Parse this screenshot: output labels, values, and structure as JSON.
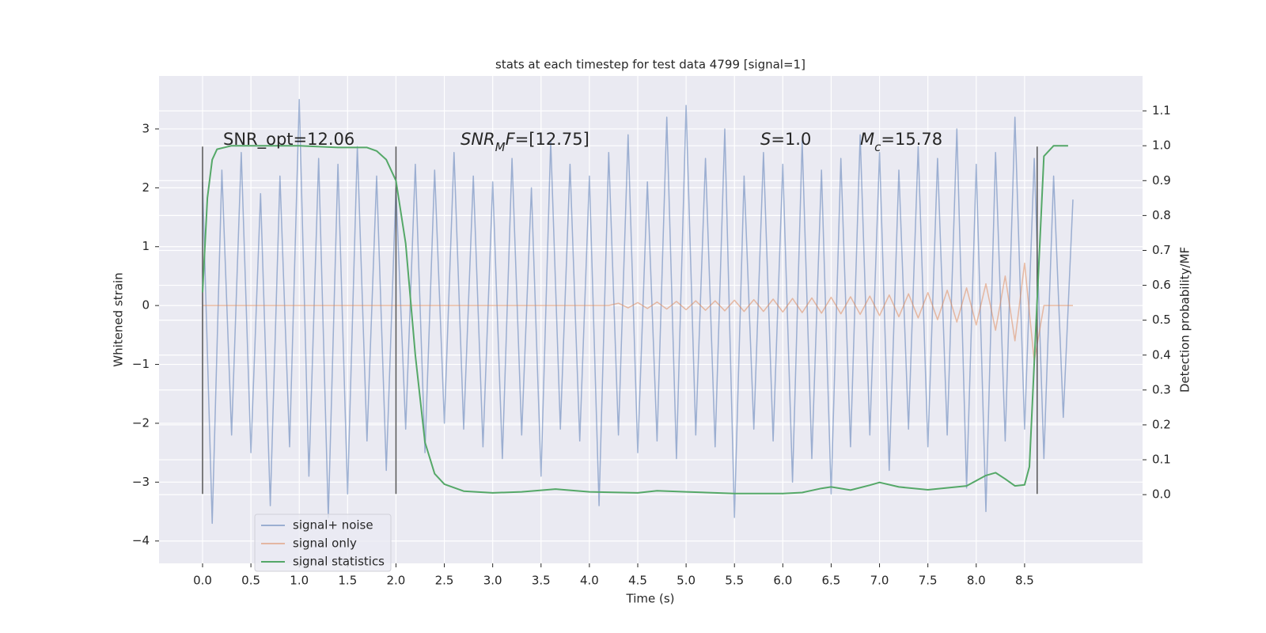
{
  "chart_data": {
    "type": "line",
    "title": "stats at each timestep for test data 4799 [signal=1]",
    "xlabel": "Time (s)",
    "ylabel": "Whitened strain",
    "y2label": "Detection probability/MF",
    "xlim": [
      -0.45,
      9.72
    ],
    "ylim": [
      -4.38,
      3.9
    ],
    "y2lim": [
      -0.197,
      1.2
    ],
    "xticks": [
      {
        "value": 0,
        "label": "0.0"
      },
      0.5,
      {
        "value": 1,
        "label": "1.0"
      },
      1.5,
      {
        "value": 2,
        "label": "2.0"
      },
      2.5,
      {
        "value": 3,
        "label": "3.0"
      },
      3.5,
      {
        "value": 4,
        "label": "4.0"
      },
      4.5,
      {
        "value": 5,
        "label": "5.0"
      },
      5.5,
      {
        "value": 6,
        "label": "6.0"
      },
      6.5,
      {
        "value": 7,
        "label": "7.0"
      },
      7.5,
      {
        "value": 8,
        "label": "8.0"
      },
      8.5
    ],
    "yticks": [
      {
        "value": -4,
        "label": "−4"
      },
      {
        "value": -3,
        "label": "−3"
      },
      {
        "value": -2,
        "label": "−2"
      },
      {
        "value": -1,
        "label": "−1"
      },
      0,
      1,
      2,
      3
    ],
    "y2ticks": [
      {
        "value": 0,
        "label": "0.0"
      },
      0.1,
      0.2,
      0.3,
      0.4,
      0.5,
      0.6,
      0.7,
      0.8,
      0.9,
      {
        "value": 1,
        "label": "1.0"
      },
      1.1
    ],
    "grid": true,
    "legend": "lower left",
    "x": [
      0,
      0.1,
      0.2,
      0.3,
      0.4,
      0.5,
      0.6,
      0.7,
      0.8,
      0.9,
      1.0,
      1.1,
      1.2,
      1.3,
      1.4,
      1.5,
      1.6,
      1.7,
      1.8,
      1.9,
      2.0,
      2.1,
      2.2,
      2.3,
      2.4,
      2.5,
      2.6,
      2.7,
      2.8,
      2.9,
      3.0,
      3.1,
      3.2,
      3.3,
      3.4,
      3.5,
      3.6,
      3.7,
      3.8,
      3.9,
      4.0,
      4.1,
      4.2,
      4.3,
      4.4,
      4.5,
      4.6,
      4.7,
      4.8,
      4.9,
      5.0,
      5.1,
      5.2,
      5.3,
      5.4,
      5.5,
      5.6,
      5.7,
      5.8,
      5.9,
      6.0,
      6.1,
      6.2,
      6.3,
      6.4,
      6.5,
      6.6,
      6.7,
      6.8,
      6.9,
      7.0,
      7.1,
      7.2,
      7.3,
      7.4,
      7.5,
      7.6,
      7.7,
      7.8,
      7.9,
      8.0,
      8.1,
      8.2,
      8.3,
      8.4,
      8.5,
      8.6,
      8.7,
      8.8,
      8.9,
      9.0
    ],
    "series": [
      {
        "name": "signal+ noise",
        "color": "#4c72b0",
        "alpha": 0.5,
        "values": [
          2.1,
          -3.7,
          2.3,
          -2.2,
          2.6,
          -2.5,
          1.9,
          -3.4,
          2.2,
          -2.4,
          3.5,
          -2.9,
          2.5,
          -3.6,
          2.4,
          -3.2,
          2.7,
          -2.3,
          2.2,
          -2.8,
          2.0,
          -2.1,
          2.4,
          -2.5,
          2.3,
          -2.0,
          2.6,
          -2.1,
          2.2,
          -2.4,
          2.1,
          -2.6,
          2.5,
          -2.2,
          2.0,
          -2.9,
          2.8,
          -2.1,
          2.4,
          -2.3,
          2.2,
          -3.4,
          2.6,
          -2.2,
          2.9,
          -2.5,
          2.1,
          -2.3,
          3.2,
          -2.6,
          3.4,
          -2.2,
          2.5,
          -2.4,
          3.0,
          -3.6,
          2.2,
          -2.1,
          2.6,
          -2.3,
          2.4,
          -3.0,
          2.8,
          -2.6,
          2.3,
          -3.2,
          2.5,
          -2.4,
          2.9,
          -2.2,
          2.6,
          -2.8,
          2.3,
          -2.1,
          2.7,
          -2.4,
          2.5,
          -2.2,
          3.0,
          -3.1,
          2.4,
          -3.5,
          2.6,
          -2.3,
          3.2,
          -2.1,
          2.5,
          -2.6,
          2.2,
          -1.9,
          1.8
        ]
      },
      {
        "name": "signal only",
        "color": "#dd8452",
        "alpha": 0.5,
        "values": [
          0,
          0,
          0,
          0,
          0,
          0,
          0,
          0,
          0,
          0,
          0,
          0,
          0,
          0,
          0,
          0,
          0,
          0,
          0,
          0,
          0,
          0,
          0,
          0,
          0,
          0,
          0,
          0,
          0,
          0,
          0,
          0,
          0,
          0,
          0,
          0,
          0,
          0,
          0,
          0,
          0,
          0,
          0,
          0.04,
          -0.04,
          0.05,
          -0.05,
          0.06,
          -0.06,
          0.07,
          -0.07,
          0.08,
          -0.08,
          0.08,
          -0.09,
          0.09,
          -0.1,
          0.1,
          -0.1,
          0.11,
          -0.11,
          0.12,
          -0.12,
          0.13,
          -0.13,
          0.14,
          -0.14,
          0.15,
          -0.15,
          0.16,
          -0.17,
          0.18,
          -0.19,
          0.2,
          -0.21,
          0.22,
          -0.24,
          0.26,
          -0.28,
          0.3,
          -0.33,
          0.37,
          -0.42,
          0.5,
          -0.6,
          0.72,
          -0.95,
          0,
          0,
          0,
          0
        ]
      },
      {
        "name": "signal statistics",
        "color": "#55a868",
        "alpha": 1,
        "axis": "y2",
        "x": [
          0,
          0.05,
          0.1,
          0.15,
          0.3,
          0.6,
          1.0,
          1.4,
          1.7,
          1.8,
          1.9,
          2.0,
          2.1,
          2.2,
          2.3,
          2.4,
          2.5,
          2.7,
          3.0,
          3.3,
          3.65,
          4.0,
          4.5,
          4.7,
          5.0,
          5.5,
          6.0,
          6.2,
          6.4,
          6.5,
          6.7,
          6.9,
          7.0,
          7.2,
          7.5,
          7.9,
          8.1,
          8.2,
          8.3,
          8.4,
          8.5,
          8.55,
          8.62,
          8.7,
          8.8,
          8.95
        ],
        "values": [
          0.58,
          0.85,
          0.96,
          0.99,
          1.0,
          1.0,
          1.0,
          0.995,
          0.995,
          0.985,
          0.96,
          0.9,
          0.72,
          0.4,
          0.15,
          0.06,
          0.03,
          0.01,
          0.005,
          0.008,
          0.016,
          0.008,
          0.005,
          0.011,
          0.008,
          0.003,
          0.003,
          0.006,
          0.018,
          0.022,
          0.013,
          0.027,
          0.035,
          0.022,
          0.014,
          0.025,
          0.055,
          0.063,
          0.045,
          0.025,
          0.028,
          0.08,
          0.5,
          0.97,
          1.0,
          1.0
        ]
      }
    ],
    "vlines": {
      "x": [
        0,
        2.0,
        8.63
      ],
      "ymin": -3.2,
      "ymax": 2.7,
      "color": "#555555"
    },
    "annotations": [
      {
        "parts": [
          {
            "text": "SNR_opt=12.06"
          }
        ]
      },
      {
        "parts": [
          {
            "text": "SNR",
            "italic": true
          },
          {
            "text": "M",
            "italic": true,
            "sub": true
          },
          {
            "text": "F",
            "italic": true
          },
          {
            "text": "=[12.75]"
          }
        ]
      },
      {
        "parts": [
          {
            "text": "S",
            "italic": true
          },
          {
            "text": "=1.0"
          }
        ]
      },
      {
        "parts": [
          {
            "text": "M",
            "italic": true
          },
          {
            "text": "c",
            "italic": true,
            "sub": true
          },
          {
            "text": "=15.78"
          }
        ]
      }
    ]
  }
}
